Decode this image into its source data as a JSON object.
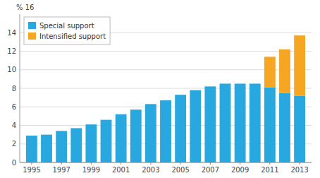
{
  "chart_data": {
    "type": "bar",
    "stacked": true,
    "annotations": [
      "% 16"
    ],
    "x": [
      1995,
      1996,
      1997,
      1998,
      1999,
      2000,
      2001,
      2002,
      2003,
      2004,
      2005,
      2006,
      2007,
      2008,
      2009,
      2010,
      2011,
      2012,
      2013
    ],
    "xlim": [
      1994.2,
      2013.8
    ],
    "xticks": [
      1995,
      1997,
      1999,
      2001,
      2003,
      2005,
      2007,
      2009,
      2011,
      2013
    ],
    "ylim": [
      0,
      16
    ],
    "yticks": [
      0,
      2,
      4,
      6,
      8,
      10,
      12,
      14
    ],
    "grid": true,
    "legend": "upper-left",
    "series": [
      {
        "name": "Special support",
        "color": "#29a8e0",
        "values": [
          2.9,
          3.0,
          3.4,
          3.7,
          4.1,
          4.6,
          5.2,
          5.7,
          6.3,
          6.7,
          7.3,
          7.8,
          8.2,
          8.5,
          8.5,
          8.5,
          8.1,
          7.5,
          7.2
        ]
      },
      {
        "name": "Intensified support",
        "color": "#f5a623",
        "values": [
          0.0,
          0.0,
          0.0,
          0.0,
          0.0,
          0.0,
          0.0,
          0.0,
          0.0,
          0.0,
          0.0,
          0.0,
          0.0,
          0.0,
          0.0,
          0.0,
          3.3,
          4.7,
          6.5
        ]
      }
    ]
  }
}
